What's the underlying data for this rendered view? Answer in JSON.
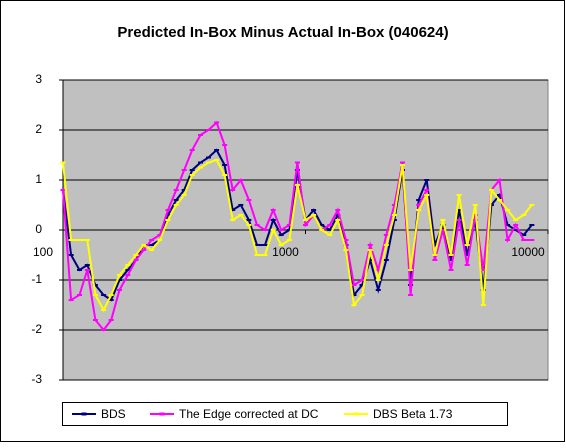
{
  "chart_data": {
    "type": "line",
    "title": "Predicted In-Box Minus Actual In-Box (040624)",
    "x": [
      100,
      108,
      117,
      126,
      136,
      147,
      158,
      171,
      185,
      200,
      215,
      232,
      251,
      271,
      293,
      316,
      341,
      369,
      398,
      430,
      464,
      501,
      541,
      584,
      631,
      681,
      736,
      794,
      858,
      926,
      1000,
      1080,
      1166,
      1259,
      1359,
      1468,
      1585,
      1711,
      1848,
      1995,
      2154,
      2326,
      2512,
      2712,
      2929,
      3162,
      3415,
      3687,
      3981,
      4299,
      4642,
      5012,
      5412,
      5843,
      6310,
      6813,
      7356,
      7943,
      8577
    ],
    "series": [
      {
        "name": "BDS",
        "color": "#000080",
        "values": [
          0.8,
          -0.5,
          -0.8,
          -0.7,
          -1.1,
          -1.3,
          -1.4,
          -1.0,
          -0.8,
          -0.6,
          -0.3,
          -0.3,
          -0.2,
          0.3,
          0.6,
          0.8,
          1.2,
          1.35,
          1.45,
          1.6,
          1.3,
          0.4,
          0.5,
          0.2,
          -0.3,
          -0.3,
          0.2,
          -0.1,
          0.0,
          1.2,
          0.2,
          0.4,
          0.1,
          0.0,
          0.3,
          -0.3,
          -1.3,
          -1.1,
          -0.6,
          -1.2,
          -0.6,
          0.2,
          1.2,
          -1.1,
          0.6,
          1.0,
          -0.3,
          0.1,
          -0.6,
          0.4,
          -0.5,
          0.2,
          -1.2,
          0.5,
          0.7,
          0.1,
          0.0,
          -0.1,
          0.1
        ]
      },
      {
        "name": "The Edge corrected at DC",
        "color": "#ff00ff",
        "values": [
          0.8,
          -1.4,
          -1.3,
          -0.8,
          -1.8,
          -2.0,
          -1.8,
          -1.2,
          -0.9,
          -0.6,
          -0.4,
          -0.2,
          -0.1,
          0.4,
          0.8,
          1.2,
          1.6,
          1.9,
          2.0,
          2.15,
          1.7,
          0.8,
          1.0,
          0.6,
          0.1,
          0.0,
          0.4,
          0.0,
          0.1,
          1.35,
          0.1,
          0.3,
          0.0,
          0.1,
          0.4,
          -0.2,
          -1.1,
          -1.0,
          -0.3,
          -0.8,
          -0.1,
          0.5,
          1.35,
          -1.3,
          0.5,
          0.8,
          -0.6,
          0.0,
          -0.8,
          0.2,
          -0.7,
          0.3,
          -0.8,
          0.8,
          1.0,
          -0.2,
          0.1,
          -0.2,
          -0.2
        ]
      },
      {
        "name": "DBS Beta 1.73",
        "color": "#ffff00",
        "values": [
          1.35,
          -0.2,
          -0.2,
          -0.2,
          -1.3,
          -1.6,
          -1.3,
          -0.9,
          -0.7,
          -0.5,
          -0.3,
          -0.4,
          -0.2,
          0.2,
          0.5,
          0.7,
          1.1,
          1.25,
          1.35,
          1.4,
          1.1,
          0.2,
          0.3,
          0.1,
          -0.5,
          -0.5,
          0.0,
          -0.3,
          -0.2,
          0.9,
          0.2,
          0.3,
          0.0,
          -0.1,
          0.2,
          -0.4,
          -1.5,
          -1.3,
          -0.4,
          -1.0,
          -0.3,
          0.3,
          1.3,
          -0.8,
          0.4,
          0.7,
          -0.5,
          0.2,
          -0.5,
          0.7,
          -0.3,
          0.5,
          -1.5,
          0.8,
          0.6,
          0.4,
          0.2,
          0.3,
          0.5
        ]
      }
    ],
    "xlim": [
      100,
      10000
    ],
    "xticks": [
      100,
      1000,
      10000
    ],
    "xscale": "log",
    "ylim": [
      -3,
      3
    ],
    "yticks": [
      -3,
      -2,
      -1,
      0,
      1,
      2,
      3
    ],
    "grid": true,
    "legend": "bottom",
    "plot_background": "#c0c0c0"
  }
}
